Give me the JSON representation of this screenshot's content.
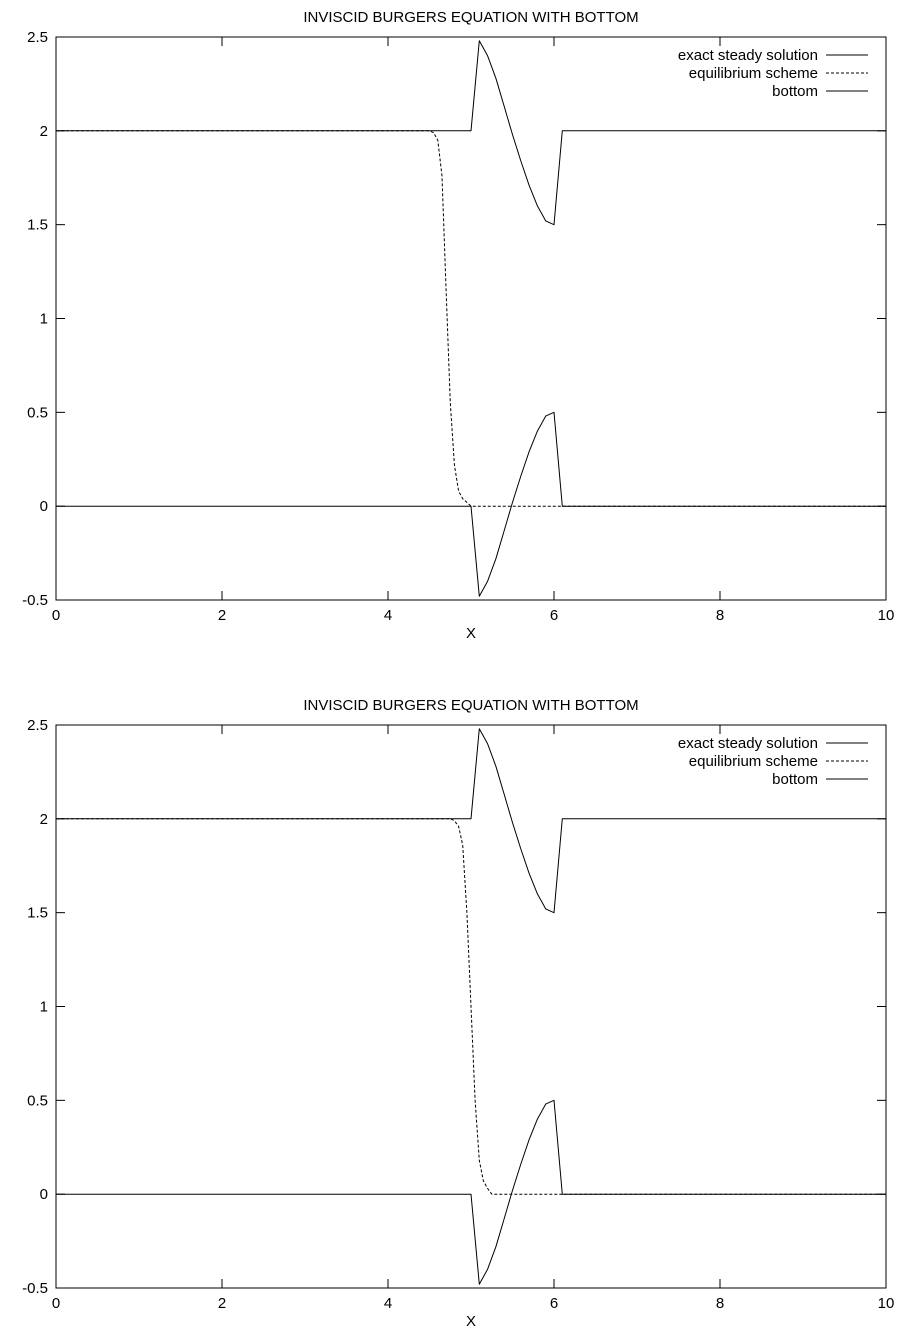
{
  "chart_data": [
    {
      "type": "line",
      "title": "INVISCID BURGERS EQUATION WITH BOTTOM",
      "xlabel": "X",
      "ylabel": "",
      "xlim": [
        0,
        10
      ],
      "ylim": [
        -0.5,
        2.5
      ],
      "xticks": [
        "0",
        "2",
        "4",
        "6",
        "8",
        "10"
      ],
      "yticks": [
        "-0.5",
        "0",
        "0.5",
        "1",
        "1.5",
        "2",
        "2.5"
      ],
      "grid": false,
      "legend_position": "top-right",
      "series": [
        {
          "name": "exact steady solution",
          "style": "solid",
          "x": [
            0,
            5.0,
            5.1,
            5.2,
            5.3,
            5.4,
            5.5,
            5.6,
            5.7,
            5.8,
            5.9,
            6.0,
            6.1,
            10
          ],
          "y": [
            2,
            2,
            2.48,
            2.4,
            2.28,
            2.13,
            1.98,
            1.84,
            1.71,
            1.6,
            1.52,
            1.5,
            2,
            2
          ]
        },
        {
          "name": "equilibrium scheme",
          "style": "dashed",
          "x": [
            0,
            4.5,
            4.55,
            4.6,
            4.65,
            4.7,
            4.75,
            4.8,
            4.85,
            4.9,
            4.95,
            5.0,
            10
          ],
          "y": [
            2,
            2,
            1.99,
            1.95,
            1.76,
            1.15,
            0.55,
            0.22,
            0.08,
            0.04,
            0.02,
            0,
            0
          ]
        },
        {
          "name": "bottom",
          "style": "solid",
          "x": [
            0,
            5.0,
            5.1,
            5.2,
            5.3,
            5.4,
            5.5,
            5.6,
            5.7,
            5.8,
            5.9,
            6.0,
            6.1,
            10
          ],
          "y": [
            0,
            0,
            -0.48,
            -0.4,
            -0.28,
            -0.13,
            0.02,
            0.16,
            0.29,
            0.4,
            0.48,
            0.5,
            0,
            0
          ]
        }
      ]
    },
    {
      "type": "line",
      "title": "INVISCID BURGERS EQUATION WITH BOTTOM",
      "xlabel": "X",
      "ylabel": "",
      "xlim": [
        0,
        10
      ],
      "ylim": [
        -0.5,
        2.5
      ],
      "xticks": [
        "0",
        "2",
        "4",
        "6",
        "8",
        "10"
      ],
      "yticks": [
        "-0.5",
        "0",
        "0.5",
        "1",
        "1.5",
        "2",
        "2.5"
      ],
      "grid": false,
      "legend_position": "top-right",
      "series": [
        {
          "name": "exact steady solution",
          "style": "solid",
          "x": [
            0,
            5.0,
            5.1,
            5.2,
            5.3,
            5.4,
            5.5,
            5.6,
            5.7,
            5.8,
            5.9,
            6.0,
            6.1,
            10
          ],
          "y": [
            2,
            2,
            2.48,
            2.4,
            2.28,
            2.13,
            1.98,
            1.84,
            1.71,
            1.6,
            1.52,
            1.5,
            2,
            2
          ]
        },
        {
          "name": "equilibrium scheme",
          "style": "dashed",
          "x": [
            0,
            4.75,
            4.8,
            4.85,
            4.9,
            4.95,
            5.0,
            5.05,
            5.1,
            5.15,
            5.2,
            5.25,
            10
          ],
          "y": [
            2,
            2,
            1.99,
            1.96,
            1.86,
            1.5,
            1.0,
            0.5,
            0.18,
            0.07,
            0.03,
            0,
            0
          ]
        },
        {
          "name": "bottom",
          "style": "solid",
          "x": [
            0,
            5.0,
            5.1,
            5.2,
            5.3,
            5.4,
            5.5,
            5.6,
            5.7,
            5.8,
            5.9,
            6.0,
            6.1,
            10
          ],
          "y": [
            0,
            0,
            -0.48,
            -0.4,
            -0.28,
            -0.13,
            0.02,
            0.16,
            0.29,
            0.4,
            0.48,
            0.5,
            0,
            0
          ]
        }
      ]
    }
  ]
}
